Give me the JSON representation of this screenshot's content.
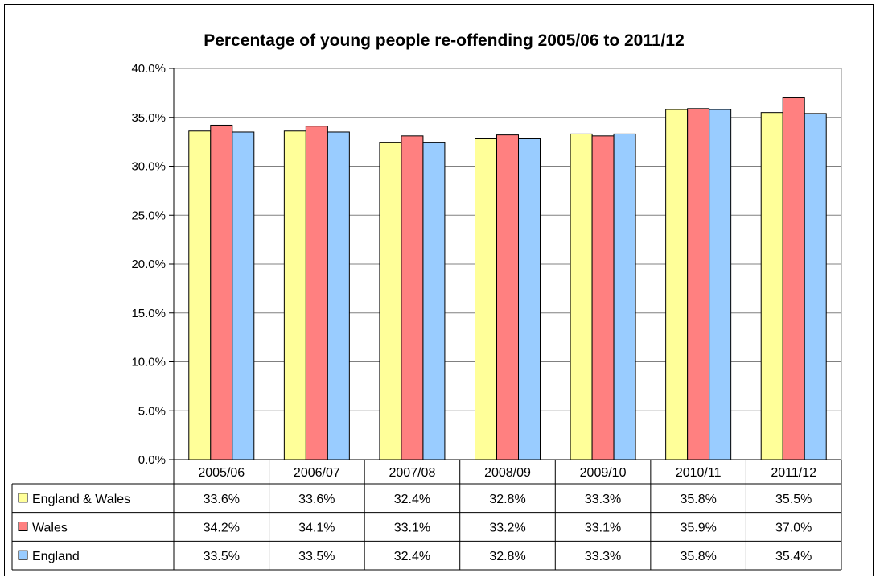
{
  "chart_data": {
    "type": "bar",
    "title": "Percentage of young people re-offending 2005/06 to 2011/12",
    "categories": [
      "2005/06",
      "2006/07",
      "2007/08",
      "2008/09",
      "2009/10",
      "2010/11",
      "2011/12"
    ],
    "series": [
      {
        "name": "England & Wales",
        "color": "#FFFF99",
        "values": [
          33.6,
          33.6,
          32.4,
          32.8,
          33.3,
          35.8,
          35.5
        ],
        "labels": [
          "33.6%",
          "33.6%",
          "32.4%",
          "32.8%",
          "33.3%",
          "35.8%",
          "35.5%"
        ]
      },
      {
        "name": "Wales",
        "color": "#FF8080",
        "values": [
          34.2,
          34.1,
          33.1,
          33.2,
          33.1,
          35.9,
          37.0
        ],
        "labels": [
          "34.2%",
          "34.1%",
          "33.1%",
          "33.2%",
          "33.1%",
          "35.9%",
          "37.0%"
        ]
      },
      {
        "name": "England",
        "color": "#99CCFF",
        "values": [
          33.5,
          33.5,
          32.4,
          32.8,
          33.3,
          35.8,
          35.4
        ],
        "labels": [
          "33.5%",
          "33.5%",
          "32.4%",
          "32.8%",
          "33.3%",
          "35.8%",
          "35.4%"
        ]
      }
    ],
    "ylim": [
      0,
      40
    ],
    "yticks": [
      0,
      5,
      10,
      15,
      20,
      25,
      30,
      35,
      40
    ],
    "ytick_labels": [
      "0.0%",
      "5.0%",
      "10.0%",
      "15.0%",
      "20.0%",
      "25.0%",
      "30.0%",
      "35.0%",
      "40.0%"
    ],
    "grid": true,
    "legend": "data-table"
  }
}
